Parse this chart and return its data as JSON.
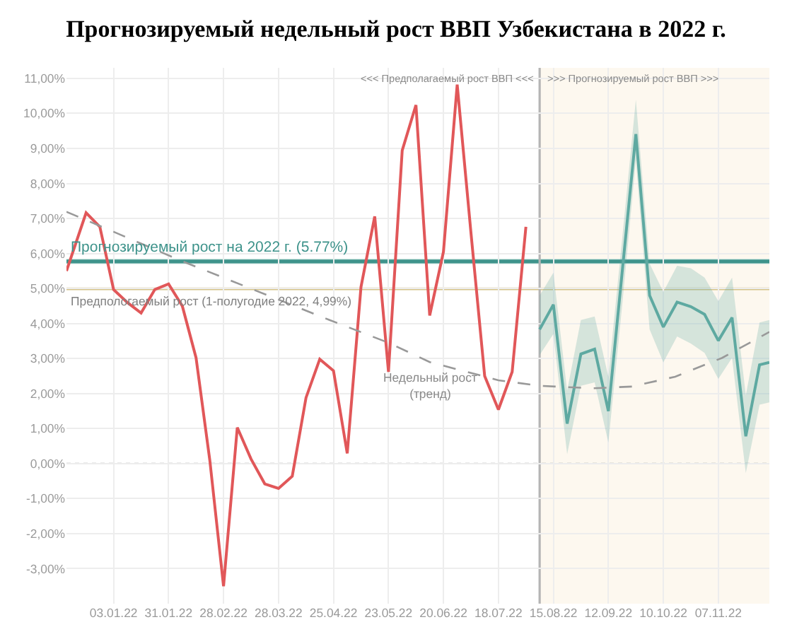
{
  "chart_data": {
    "type": "line",
    "title": "Прогнозируемый недельный рост ВВП Узбекистана в 2022 г.",
    "series": [
      {
        "color": "#e15759",
        "x": [
          "2021-12-10",
          "2021-12-20",
          "2021-12-27",
          "2022-01-03",
          "2022-01-10",
          "2022-01-17",
          "2022-01-24",
          "2022-01-31",
          "2022-02-07",
          "2022-02-14",
          "2022-02-21",
          "2022-02-28",
          "2022-03-07",
          "2022-03-14",
          "2022-03-21",
          "2022-03-28",
          "2022-04-04",
          "2022-04-11",
          "2022-04-18",
          "2022-04-25",
          "2022-05-02",
          "2022-05-09",
          "2022-05-16",
          "2022-05-23",
          "2022-05-30",
          "2022-06-06",
          "2022-06-13",
          "2022-06-20",
          "2022-06-27",
          "2022-07-04",
          "2022-07-11",
          "2022-07-18",
          "2022-07-25",
          "2022-08-01"
        ],
        "values": [
          5.5,
          7.16,
          6.76,
          4.97,
          4.6,
          4.3,
          4.97,
          5.13,
          4.5,
          3.02,
          0.1,
          -3.5,
          1.03,
          0.13,
          -0.58,
          -0.71,
          -0.36,
          1.88,
          2.98,
          2.65,
          0.29,
          5.04,
          7.06,
          2.62,
          8.94,
          10.24,
          4.23,
          6.05,
          10.82,
          6.6,
          2.5,
          1.54,
          2.62,
          6.76
        ]
      },
      {
        "color": "#5ea9a1",
        "x": [
          "2022-08-08",
          "2022-08-15",
          "2022-08-22",
          "2022-08-29",
          "2022-09-05",
          "2022-09-12",
          "2022-09-19",
          "2022-09-26",
          "2022-10-03",
          "2022-10-10",
          "2022-10-17",
          "2022-10-24",
          "2022-10-31",
          "2022-11-07",
          "2022-11-14",
          "2022-11-21",
          "2022-11-28",
          "2022-12-03"
        ],
        "values": [
          3.83,
          4.54,
          1.14,
          3.13,
          3.27,
          1.5,
          5.45,
          9.41,
          4.8,
          3.9,
          4.61,
          4.48,
          4.26,
          3.51,
          4.17,
          0.78,
          2.82,
          2.89
        ],
        "lower": [
          3.1,
          3.7,
          0.27,
          2.22,
          2.32,
          0.6,
          4.5,
          8.67,
          3.83,
          2.89,
          3.63,
          3.43,
          3.16,
          2.42,
          3.02,
          -0.27,
          1.68,
          1.75
        ],
        "upper": [
          4.8,
          5.45,
          2.08,
          4.1,
          4.2,
          2.48,
          6.4,
          10.39,
          5.71,
          4.9,
          5.65,
          5.58,
          5.31,
          4.64,
          5.31,
          1.95,
          4.03,
          4.1
        ]
      },
      {
        "type": "line",
        "color": "#999999",
        "line_style": "dashed",
        "x": [
          "2021-12-10",
          "2022-01-03",
          "2022-02-06",
          "2022-03-16",
          "2022-04-23",
          "2022-05-23",
          "2022-06-13",
          "2022-07-18",
          "2022-08-08",
          "2022-09-04",
          "2022-09-24",
          "2022-10-16",
          "2022-11-09",
          "2022-12-03"
        ],
        "values": [
          7.19,
          6.62,
          5.8,
          4.95,
          4.1,
          3.45,
          2.9,
          2.38,
          2.22,
          2.15,
          2.2,
          2.48,
          3.02,
          3.76
        ]
      }
    ],
    "annotations": [
      {
        "text": "Недельный рост\n(тренд)",
        "x": "2022-06-13",
        "y": 2.9
      }
    ],
    "ref_lines": [
      {
        "axis": "y",
        "value": 5.77,
        "label": "Прогнозируемый рост на 2022 г. (5.77%)",
        "color": "#3e938b"
      },
      {
        "axis": "y",
        "value": 4.99,
        "label": "Предпологаемый рост (1-полугодие 2022, 4,99%)",
        "color": "#d6c48a"
      },
      {
        "axis": "y",
        "value": 0,
        "color": "#aaaaaa",
        "line_style": "dotted"
      },
      {
        "axis": "x",
        "value": "2022-08-08",
        "label": "<<< Предполагаемый рост ВВП <<<",
        "color": "#b5b5b5"
      }
    ],
    "bands": [
      {
        "axis": "x",
        "from": "2022-08-08",
        "to": "2022-12-03",
        "label": ">>> Прогнозируемый рост ВВП >>>",
        "color": "#fdf8ef"
      },
      {
        "axis": "y",
        "from": 5.7,
        "to": 5.85,
        "color": "#cde5e0"
      }
    ],
    "xlim": [
      "2021-12-10",
      "2022-12-03"
    ],
    "xticks": [
      {
        "value": "2022-01-03",
        "label": "03.01.22"
      },
      {
        "value": "2022-01-31",
        "label": "31.01.22"
      },
      {
        "value": "2022-02-28",
        "label": "28.02.22"
      },
      {
        "value": "2022-03-28",
        "label": "28.03.22"
      },
      {
        "value": "2022-04-25",
        "label": "25.04.22"
      },
      {
        "value": "2022-05-23",
        "label": "23.05.22"
      },
      {
        "value": "2022-06-20",
        "label": "20.06.22"
      },
      {
        "value": "2022-07-18",
        "label": "18.07.22"
      },
      {
        "value": "2022-08-15",
        "label": "15.08.22"
      },
      {
        "value": "2022-09-12",
        "label": "12.09.22"
      },
      {
        "value": "2022-10-10",
        "label": "10.10.22"
      },
      {
        "value": "2022-11-07",
        "label": "07.11.22"
      }
    ],
    "ylim": [
      -4,
      11.3
    ],
    "yticks": [
      {
        "value": -3,
        "label": "-3,00%"
      },
      {
        "value": -2,
        "label": "-2,00%"
      },
      {
        "value": -1,
        "label": "-1,00%"
      },
      {
        "value": 0,
        "label": "0,00%"
      },
      {
        "value": 1,
        "label": "1,00%"
      },
      {
        "value": 2,
        "label": "2,00%"
      },
      {
        "value": 3,
        "label": "3,00%"
      },
      {
        "value": 4,
        "label": "4,00%"
      },
      {
        "value": 5,
        "label": "5,00%"
      },
      {
        "value": 6,
        "label": "6,00%"
      },
      {
        "value": 7,
        "label": "7,00%"
      },
      {
        "value": 8,
        "label": "8,00%"
      },
      {
        "value": 9,
        "label": "9,00%"
      },
      {
        "value": 10,
        "label": "10,00%"
      },
      {
        "value": 11,
        "label": "11,00%"
      }
    ],
    "grid": true
  }
}
